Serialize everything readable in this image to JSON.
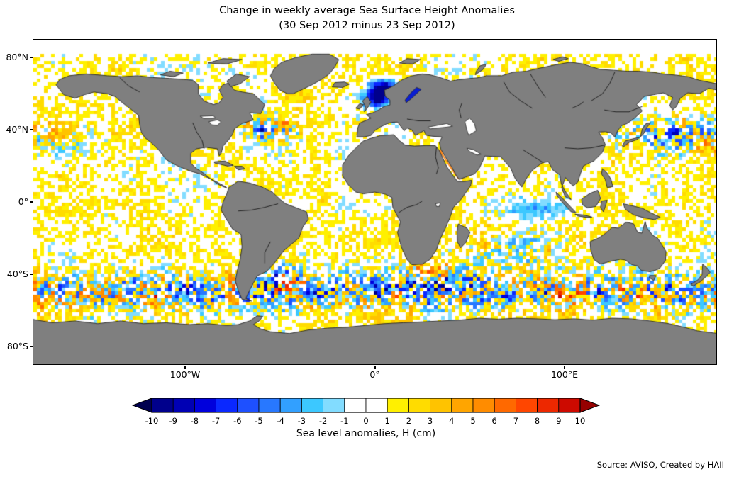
{
  "title": "Change in weekly average Sea Surface Height Anomalies",
  "subtitle": "(30 Sep 2012 minus 23 Sep 2012)",
  "source_note": "Source: AVISO, Created by HAII",
  "map": {
    "y_tick_labels": [
      "80°N",
      "40°N",
      "0°",
      "40°S",
      "80°S"
    ],
    "x_tick_labels": [
      "100°W",
      "0°",
      "100°E"
    ],
    "land_color": "#7f7f7f",
    "ocean_color": "#ffffff",
    "coastline_color": "#222222"
  },
  "colorbar": {
    "label": "Sea level anomalies, H (cm)",
    "tick_labels": [
      "-10",
      "-9",
      "-8",
      "-7",
      "-6",
      "-5",
      "-4",
      "-3",
      "-2",
      "-1",
      "0",
      "1",
      "2",
      "3",
      "4",
      "5",
      "6",
      "7",
      "8",
      "9",
      "10"
    ],
    "under_color": "#000050",
    "over_color": "#960000",
    "segment_colors": [
      "#00008c",
      "#0000b4",
      "#0000dc",
      "#0a28ff",
      "#1e50ff",
      "#2878ff",
      "#32a0ff",
      "#3cc8ff",
      "#82dcff",
      "#ffffff",
      "#ffffff",
      "#fff000",
      "#ffdc00",
      "#ffc300",
      "#ffa500",
      "#ff8c00",
      "#ff6900",
      "#ff4600",
      "#ed2800",
      "#cd0a00"
    ]
  },
  "chart_data": {
    "type": "heatmap",
    "subtype": "geographic map, equirectangular projection, world extent",
    "title": "Change in weekly average Sea Surface Height Anomalies",
    "subtitle": "(30 Sep 2012 minus 23 Sep 2012)",
    "value_label": "Sea level anomalies, H (cm)",
    "units": "cm",
    "value_range": [
      -10,
      10
    ],
    "lon_tick_labels": [
      "100°W",
      "0°",
      "100°E"
    ],
    "lat_tick_labels": [
      "80°N",
      "40°N",
      "0°",
      "40°S",
      "80°S"
    ],
    "colormap": {
      "breakpoints": [
        -10,
        -9,
        -8,
        -7,
        -6,
        -5,
        -4,
        -3,
        -2,
        -1,
        0,
        1,
        2,
        3,
        4,
        5,
        6,
        7,
        8,
        9,
        10
      ],
      "segment_colors": [
        "#00008c",
        "#0000b4",
        "#0000dc",
        "#0a28ff",
        "#1e50ff",
        "#2878ff",
        "#32a0ff",
        "#3cc8ff",
        "#82dcff",
        "#ffffff",
        "#ffffff",
        "#fff000",
        "#ffdc00",
        "#ffc300",
        "#ffa500",
        "#ff8c00",
        "#ff6900",
        "#ff4600",
        "#ed2800",
        "#cd0a00"
      ],
      "under_arrow_color": "#000050",
      "over_arrow_color": "#960000",
      "near_zero_band": "white between -1 and 1 cm"
    },
    "land_color": "#7f7f7f",
    "legend_position": "horizontal colorbar below map",
    "source": "Source: AVISO, Created by HAII"
  }
}
